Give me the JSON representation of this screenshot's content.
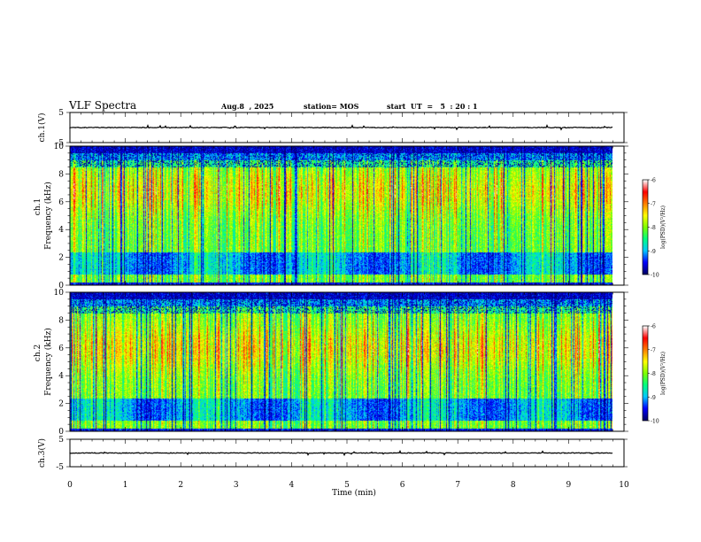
{
  "header": {
    "title": "VLF Spectra",
    "date": "Aug.8  , 2025",
    "station": "station= MOS",
    "start": "start  UT  =   5  : 20 : 1"
  },
  "chart_data": {
    "type": "heatmap",
    "title": "VLF Spectra",
    "xlabel": "Time  (min)",
    "xlim": [
      0,
      10
    ],
    "x_ticks": [
      "0",
      "1",
      "2",
      "3",
      "4",
      "5",
      "6",
      "7",
      "8",
      "9",
      "10"
    ],
    "data_end_min": 9.8,
    "panels": [
      {
        "id": "ch1_waveform",
        "type": "line",
        "ylabel": "ch.1(V)",
        "ylim": [
          -5,
          5
        ],
        "y_ticks": [
          "5",
          "-5"
        ],
        "level": 0
      },
      {
        "id": "ch1_spectrogram",
        "type": "heatmap",
        "ylabel_top": "ch.1",
        "ylabel": "Frequency  (kHz)",
        "ylim": [
          0,
          10
        ],
        "y_ticks": [
          "0",
          "2",
          "4",
          "6",
          "8",
          "10"
        ],
        "colorbar": {
          "label": "log(PSD)(V²/Hz)",
          "range": [
            -10,
            -6
          ],
          "ticks": [
            "-6",
            "-7",
            "-8",
            "-9",
            "-10"
          ]
        },
        "dominant_band_khz": [
          2,
          9
        ],
        "peak_band_khz": [
          5,
          8
        ]
      },
      {
        "id": "ch2_spectrogram",
        "type": "heatmap",
        "ylabel_top": "ch.2",
        "ylabel": "Frequency  (kHz)",
        "ylim": [
          0,
          10
        ],
        "y_ticks": [
          "0",
          "2",
          "4",
          "6",
          "8",
          "10"
        ],
        "colorbar": {
          "label": "log(PSD)(V²/Hz)",
          "range": [
            -10,
            -6
          ],
          "ticks": [
            "-6",
            "-7",
            "-8",
            "-9",
            "-10"
          ]
        },
        "dominant_band_khz": [
          2,
          9
        ],
        "peak_band_khz": [
          4,
          8
        ]
      },
      {
        "id": "ch3_waveform",
        "type": "line",
        "ylabel": "ch.3(V)",
        "ylim": [
          -5,
          5
        ],
        "y_ticks": [
          "5",
          "-5"
        ],
        "level": 0
      }
    ],
    "colormap": [
      "#000066",
      "#0000ff",
      "#00c8ff",
      "#00ff80",
      "#80ff00",
      "#ffff00",
      "#ff8000",
      "#ff0000",
      "#ffffff"
    ]
  }
}
